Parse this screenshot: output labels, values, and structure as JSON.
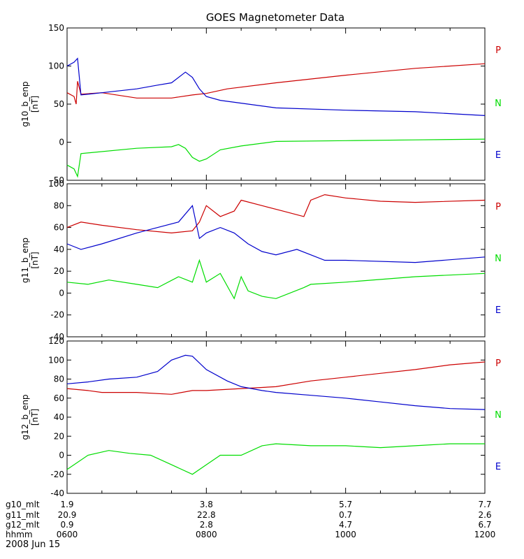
{
  "chart_data": {
    "title": "GOES Magnetometer Data",
    "type": "line",
    "date_label": "2008 Jun 15",
    "legend": [
      {
        "label": "P",
        "color": "#cc0000"
      },
      {
        "label": "N",
        "color": "#00dd00"
      },
      {
        "label": "E",
        "color": "#0000cc"
      }
    ],
    "x_axis": {
      "row_labels": [
        "g10_mlt",
        "g11_mlt",
        "g12_mlt",
        "hhmm"
      ],
      "ticks": [
        {
          "x": 6,
          "values": [
            "1.9",
            "20.9",
            "0.9",
            "0600"
          ]
        },
        {
          "x": 8,
          "values": [
            "3.8",
            "22.8",
            "2.8",
            "0800"
          ]
        },
        {
          "x": 10,
          "values": [
            "5.7",
            "0.7",
            "4.7",
            "1000"
          ]
        },
        {
          "x": 12,
          "values": [
            "7.7",
            "2.6",
            "6.7",
            "1200"
          ]
        }
      ],
      "range": [
        6,
        12
      ]
    },
    "panels": [
      {
        "ylabel": "g10_b_enp",
        "yunit": "[nT]",
        "ylim": [
          -50,
          150
        ],
        "yticks": [
          -50,
          0,
          50,
          100,
          150
        ],
        "series": [
          {
            "label": "P",
            "color": "#cc0000",
            "x": [
              6.0,
              6.1,
              6.13,
              6.15,
              6.2,
              6.5,
              7.0,
              7.5,
              7.8,
              8.0,
              8.3,
              9.0,
              10.0,
              11.0,
              12.0
            ],
            "y": [
              65,
              60,
              50,
              80,
              63,
              65,
              58,
              58,
              62,
              64,
              70,
              78,
              88,
              97,
              103
            ]
          },
          {
            "label": "N",
            "color": "#00dd00",
            "x": [
              6.0,
              6.1,
              6.15,
              6.2,
              7.0,
              7.5,
              7.6,
              7.7,
              7.8,
              7.9,
              8.0,
              8.2,
              8.5,
              9.0,
              10.0,
              11.0,
              12.0
            ],
            "y": [
              -30,
              -35,
              -45,
              -15,
              -8,
              -6,
              -3,
              -8,
              -20,
              -25,
              -22,
              -10,
              -5,
              1,
              2,
              3,
              4
            ]
          },
          {
            "label": "E",
            "color": "#0000cc",
            "x": [
              6.0,
              6.1,
              6.15,
              6.2,
              6.5,
              7.0,
              7.3,
              7.5,
              7.7,
              7.8,
              7.9,
              8.0,
              8.2,
              9.0,
              10.0,
              11.0,
              12.0
            ],
            "y": [
              100,
              105,
              110,
              62,
              65,
              70,
              75,
              78,
              92,
              85,
              70,
              60,
              55,
              45,
              42,
              40,
              35
            ]
          }
        ]
      },
      {
        "ylabel": "g11_b_enp",
        "yunit": "[nT]",
        "ylim": [
          -40,
          100
        ],
        "yticks": [
          -40,
          -20,
          0,
          20,
          40,
          60,
          80,
          100
        ],
        "series": [
          {
            "label": "P",
            "color": "#cc0000",
            "x": [
              6.0,
              6.2,
              6.5,
              7.0,
              7.5,
              7.8,
              7.9,
              8.0,
              8.2,
              8.4,
              8.5,
              8.8,
              9.1,
              9.4,
              9.5,
              9.7,
              10.0,
              10.5,
              11.0,
              12.0
            ],
            "y": [
              60,
              65,
              62,
              58,
              55,
              57,
              65,
              80,
              70,
              75,
              85,
              80,
              75,
              70,
              85,
              90,
              87,
              84,
              83,
              85
            ]
          },
          {
            "label": "N",
            "color": "#00dd00",
            "x": [
              6.0,
              6.3,
              6.6,
              7.0,
              7.3,
              7.6,
              7.8,
              7.9,
              8.0,
              8.2,
              8.4,
              8.5,
              8.6,
              8.8,
              9.0,
              9.4,
              9.5,
              10.0,
              11.0,
              12.0
            ],
            "y": [
              10,
              8,
              12,
              8,
              5,
              15,
              10,
              30,
              10,
              18,
              -5,
              15,
              2,
              -3,
              -5,
              5,
              8,
              10,
              15,
              18
            ]
          },
          {
            "label": "E",
            "color": "#0000cc",
            "x": [
              6.0,
              6.2,
              6.5,
              7.0,
              7.3,
              7.6,
              7.8,
              7.9,
              8.0,
              8.2,
              8.4,
              8.6,
              8.8,
              9.0,
              9.3,
              9.5,
              9.7,
              10.0,
              11.0,
              12.0
            ],
            "y": [
              45,
              40,
              45,
              55,
              60,
              65,
              80,
              50,
              55,
              60,
              55,
              45,
              38,
              35,
              40,
              35,
              30,
              30,
              28,
              33
            ]
          }
        ]
      },
      {
        "ylabel": "g12_b_enp",
        "yunit": "[nT]",
        "ylim": [
          -40,
          120
        ],
        "yticks": [
          -40,
          -20,
          0,
          20,
          40,
          60,
          80,
          100,
          120
        ],
        "series": [
          {
            "label": "P",
            "color": "#cc0000",
            "x": [
              6.0,
              6.3,
              6.5,
              7.0,
              7.5,
              7.8,
              8.0,
              8.5,
              9.0,
              9.5,
              10.0,
              10.5,
              11.0,
              11.5,
              12.0
            ],
            "y": [
              70,
              68,
              66,
              66,
              64,
              68,
              68,
              70,
              72,
              78,
              82,
              86,
              90,
              95,
              98
            ]
          },
          {
            "label": "N",
            "color": "#00dd00",
            "x": [
              6.0,
              6.3,
              6.6,
              6.9,
              7.2,
              7.5,
              7.8,
              8.0,
              8.2,
              8.5,
              8.8,
              9.0,
              9.5,
              10.0,
              10.5,
              11.0,
              11.5,
              12.0
            ],
            "y": [
              -15,
              0,
              5,
              2,
              0,
              -10,
              -20,
              -10,
              0,
              0,
              10,
              12,
              10,
              10,
              8,
              10,
              12,
              12
            ]
          },
          {
            "label": "E",
            "color": "#0000cc",
            "x": [
              6.0,
              6.3,
              6.6,
              7.0,
              7.3,
              7.5,
              7.7,
              7.8,
              8.0,
              8.3,
              8.5,
              8.8,
              9.0,
              9.5,
              10.0,
              10.5,
              11.0,
              11.5,
              12.0
            ],
            "y": [
              75,
              77,
              80,
              82,
              88,
              100,
              105,
              104,
              90,
              78,
              72,
              68,
              66,
              63,
              60,
              56,
              52,
              49,
              48
            ]
          }
        ]
      }
    ]
  }
}
